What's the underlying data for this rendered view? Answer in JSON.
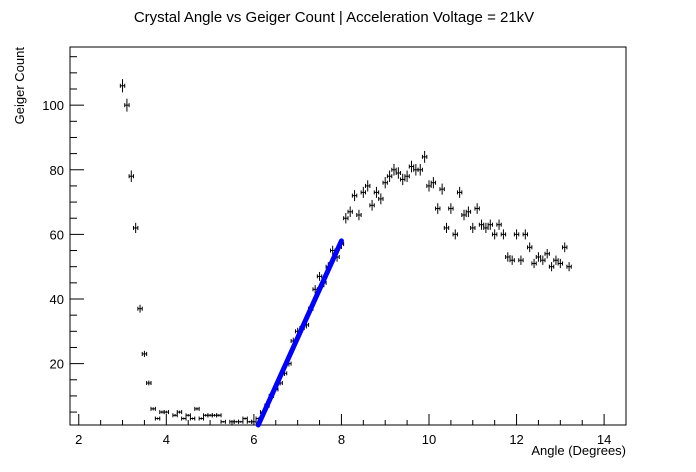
{
  "chart_data": {
    "type": "scatter",
    "title": "Crystal Angle vs Geiger Count | Acceleration Voltage = 21kV",
    "xlabel": "Angle (Degrees)",
    "ylabel": "Geiger Count",
    "xlim": [
      1.8,
      14.5
    ],
    "ylim": [
      1,
      118
    ],
    "x_ticks": [
      2,
      4,
      6,
      8,
      10,
      12,
      14
    ],
    "y_ticks": [
      20,
      40,
      60,
      80,
      100
    ],
    "grid": false,
    "colors": {
      "points": "#000000",
      "fit": "#0000ff",
      "frame": "#000000"
    },
    "x_error": 0.1,
    "series": [
      {
        "points": [
          [
            3.0,
            106
          ],
          [
            3.1,
            100
          ],
          [
            3.2,
            78
          ],
          [
            3.3,
            62
          ],
          [
            3.4,
            37
          ],
          [
            3.5,
            23
          ],
          [
            3.6,
            14
          ],
          [
            3.7,
            6
          ],
          [
            3.8,
            3
          ],
          [
            3.9,
            5
          ],
          [
            4.0,
            5
          ],
          [
            4.2,
            4
          ],
          [
            4.3,
            5
          ],
          [
            4.4,
            3
          ],
          [
            4.5,
            4
          ],
          [
            4.6,
            3
          ],
          [
            4.7,
            6
          ],
          [
            4.8,
            3
          ],
          [
            4.9,
            4
          ],
          [
            5.0,
            4
          ],
          [
            5.1,
            4
          ],
          [
            5.2,
            4
          ],
          [
            5.3,
            2
          ],
          [
            5.5,
            2
          ],
          [
            5.6,
            2
          ],
          [
            5.7,
            2
          ],
          [
            5.8,
            3
          ],
          [
            5.9,
            2
          ],
          [
            6.0,
            2
          ],
          [
            6.1,
            3
          ],
          [
            6.2,
            5
          ],
          [
            6.3,
            7
          ],
          [
            6.4,
            10
          ],
          [
            6.5,
            12
          ],
          [
            6.6,
            14
          ],
          [
            6.7,
            17
          ],
          [
            6.8,
            20
          ],
          [
            6.9,
            27
          ],
          [
            7.0,
            30
          ],
          [
            7.1,
            31
          ],
          [
            7.2,
            32
          ],
          [
            7.3,
            37
          ],
          [
            7.4,
            43
          ],
          [
            7.5,
            47
          ],
          [
            7.6,
            45
          ],
          [
            7.7,
            50
          ],
          [
            7.8,
            55
          ],
          [
            7.9,
            53
          ],
          [
            8.0,
            57
          ],
          [
            8.1,
            65
          ],
          [
            8.2,
            67
          ],
          [
            8.3,
            72
          ],
          [
            8.4,
            66
          ],
          [
            8.5,
            73
          ],
          [
            8.6,
            75
          ],
          [
            8.7,
            69
          ],
          [
            8.8,
            73
          ],
          [
            8.9,
            71
          ],
          [
            9.0,
            76
          ],
          [
            9.1,
            78
          ],
          [
            9.2,
            80
          ],
          [
            9.3,
            79
          ],
          [
            9.4,
            77
          ],
          [
            9.5,
            78
          ],
          [
            9.6,
            81
          ],
          [
            9.7,
            80
          ],
          [
            9.8,
            80
          ],
          [
            9.9,
            84
          ],
          [
            10.0,
            75
          ],
          [
            10.1,
            76
          ],
          [
            10.2,
            68
          ],
          [
            10.3,
            74
          ],
          [
            10.4,
            62
          ],
          [
            10.5,
            68
          ],
          [
            10.6,
            60
          ],
          [
            10.7,
            73
          ],
          [
            10.8,
            66
          ],
          [
            10.9,
            67
          ],
          [
            11.0,
            62
          ],
          [
            11.1,
            68
          ],
          [
            11.2,
            63
          ],
          [
            11.3,
            62
          ],
          [
            11.4,
            63
          ],
          [
            11.5,
            60
          ],
          [
            11.6,
            63
          ],
          [
            11.7,
            60
          ],
          [
            11.8,
            53
          ],
          [
            11.9,
            52
          ],
          [
            12.0,
            60
          ],
          [
            12.1,
            52
          ],
          [
            12.2,
            60
          ],
          [
            12.3,
            56
          ],
          [
            12.4,
            51
          ],
          [
            12.5,
            53
          ],
          [
            12.6,
            52
          ],
          [
            12.7,
            54
          ],
          [
            12.8,
            50
          ],
          [
            12.9,
            52
          ],
          [
            13.0,
            51
          ],
          [
            13.1,
            56
          ],
          [
            13.2,
            50
          ]
        ]
      }
    ],
    "fit": {
      "type": "line",
      "x_range": [
        6.1,
        8.0
      ],
      "y_range": [
        1,
        58
      ]
    }
  }
}
